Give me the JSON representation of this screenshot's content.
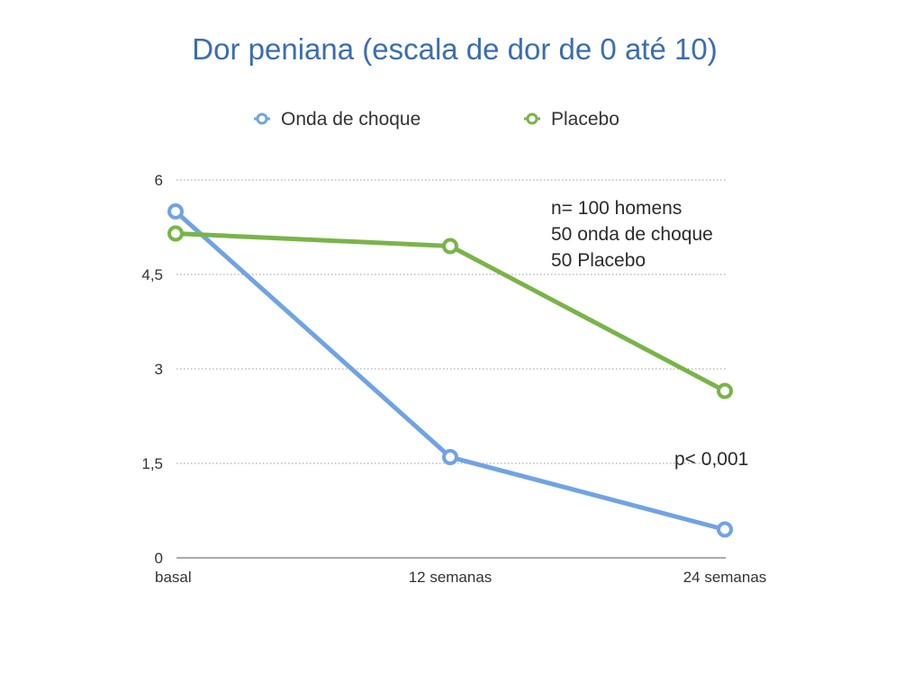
{
  "colors": {
    "title": "#3b6db3",
    "series_0": "#70a3e4",
    "series_1": "#79b448",
    "grid": "#9a9a9a",
    "axis": "#555555",
    "text": "#333333"
  },
  "chart_data": {
    "type": "line",
    "title": "Dor peniana (escala de dor de 0 até 10)",
    "xlabel": "",
    "ylabel": "",
    "categories": [
      "basal",
      "12 semanas",
      "24 semanas"
    ],
    "ylim": [
      0,
      6
    ],
    "yticks": [
      0,
      1.5,
      3,
      4.5,
      6
    ],
    "ytick_labels": [
      "0",
      "1,5",
      "3",
      "4,5",
      "6"
    ],
    "grid": "horizontal dotted",
    "legend_position": "top",
    "series": [
      {
        "name": "Onda de choque",
        "values": [
          5.5,
          1.6,
          0.45
        ]
      },
      {
        "name": "Placebo",
        "values": [
          5.15,
          4.95,
          2.65
        ]
      }
    ],
    "annotations": {
      "sample_lines": [
        "n= 100 homens",
        "50 onda de choque",
        "50 Placebo"
      ],
      "p_value": "p< 0,001"
    }
  }
}
